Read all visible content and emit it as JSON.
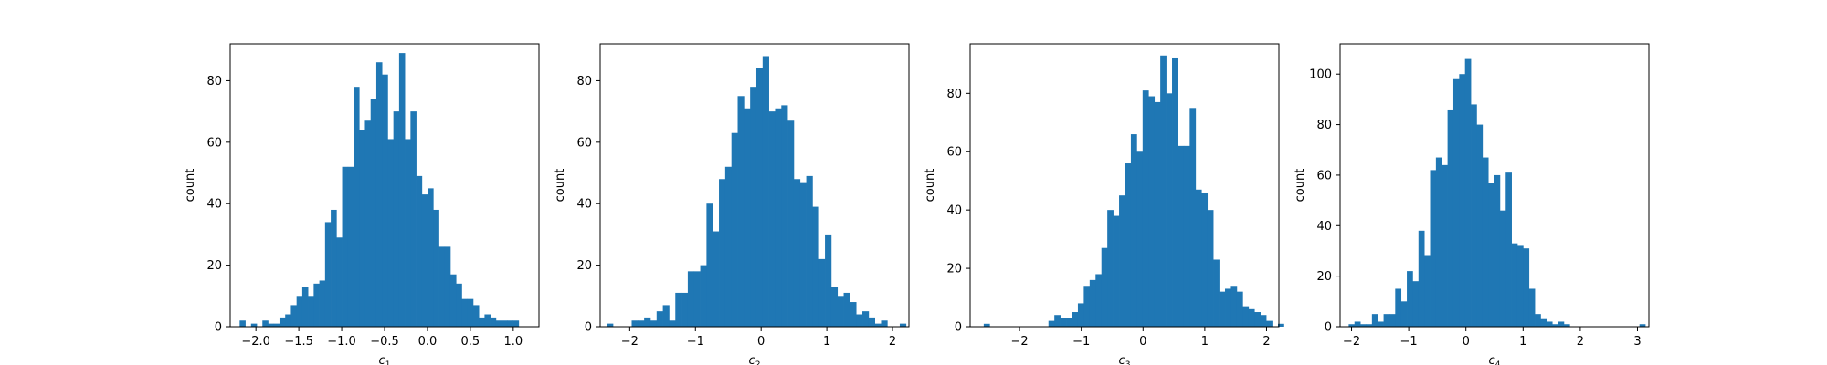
{
  "chart_data": [
    {
      "type": "bar",
      "subtype": "histogram",
      "xlabel": "c",
      "xlabel_sub": "1",
      "ylabel": "count",
      "xlim": [
        -2.3,
        1.3
      ],
      "ylim": [
        0,
        92
      ],
      "xticks": [
        -2.0,
        -1.5,
        -1.0,
        -0.5,
        0.0,
        0.5,
        1.0
      ],
      "xtick_labels": [
        "−2.0",
        "−1.5",
        "−1.0",
        "−0.5",
        "0.0",
        "0.5",
        "1.0"
      ],
      "yticks": [
        0,
        20,
        40,
        60,
        80
      ],
      "ytick_labels": [
        "0",
        "20",
        "40",
        "60",
        "80"
      ],
      "bin_start": -2.19,
      "bin_width": 0.0664,
      "values": [
        2,
        0,
        1,
        0,
        2,
        1,
        1,
        3,
        4,
        7,
        10,
        13,
        10,
        14,
        15,
        34,
        38,
        29,
        52,
        52,
        78,
        64,
        67,
        74,
        86,
        82,
        61,
        70,
        89,
        61,
        70,
        49,
        43,
        45,
        38,
        26,
        26,
        17,
        14,
        9,
        9,
        7,
        3,
        4,
        3,
        2,
        2,
        2,
        2
      ]
    },
    {
      "type": "bar",
      "subtype": "histogram",
      "xlabel": "c",
      "xlabel_sub": "2",
      "ylabel": "count",
      "xlim": [
        -2.45,
        2.25
      ],
      "ylim": [
        0,
        92
      ],
      "xticks": [
        -2,
        -1,
        0,
        1,
        2
      ],
      "xtick_labels": [
        "−2",
        "−1",
        "0",
        "1",
        "2"
      ],
      "yticks": [
        0,
        20,
        40,
        60,
        80
      ],
      "ytick_labels": [
        "0",
        "20",
        "40",
        "60",
        "80"
      ],
      "bin_start": -2.35,
      "bin_width": 0.0949,
      "values": [
        1,
        0,
        0,
        0,
        2,
        2,
        3,
        2,
        5,
        7,
        2,
        11,
        11,
        18,
        18,
        20,
        40,
        31,
        48,
        52,
        63,
        75,
        71,
        78,
        84,
        88,
        70,
        71,
        72,
        67,
        48,
        47,
        49,
        39,
        22,
        30,
        13,
        10,
        11,
        8,
        4,
        5,
        3,
        1,
        2,
        0,
        0,
        1
      ]
    },
    {
      "type": "bar",
      "subtype": "histogram",
      "xlabel": "c",
      "xlabel_sub": "3",
      "ylabel": "count",
      "xlim": [
        -2.8,
        2.2
      ],
      "ylim": [
        0,
        97
      ],
      "xticks": [
        -2,
        -1,
        0,
        1,
        2
      ],
      "xtick_labels": [
        "−2",
        "−1",
        "0",
        "1",
        "2"
      ],
      "yticks": [
        0,
        20,
        40,
        60,
        80
      ],
      "ytick_labels": [
        "0",
        "20",
        "40",
        "60",
        "80"
      ],
      "bin_start": -2.58,
      "bin_width": 0.0953,
      "values": [
        1,
        0,
        0,
        0,
        0,
        0,
        0,
        0,
        0,
        0,
        0,
        2,
        4,
        3,
        3,
        5,
        8,
        14,
        16,
        18,
        27,
        40,
        38,
        45,
        56,
        66,
        60,
        81,
        79,
        77,
        93,
        80,
        92,
        62,
        62,
        75,
        47,
        46,
        40,
        23,
        12,
        13,
        14,
        12,
        7,
        6,
        5,
        4,
        2,
        0,
        1
      ]
    },
    {
      "type": "bar",
      "subtype": "histogram",
      "xlabel": "c",
      "xlabel_sub": "4",
      "ylabel": "count",
      "xlim": [
        -2.2,
        3.2
      ],
      "ylim": [
        0,
        112
      ],
      "xticks": [
        -2,
        -1,
        0,
        1,
        2,
        3
      ],
      "xtick_labels": [
        "−2",
        "−1",
        "0",
        "1",
        "2",
        "3"
      ],
      "yticks": [
        0,
        20,
        40,
        60,
        80,
        100
      ],
      "ytick_labels": [
        "0",
        "20",
        "40",
        "60",
        "80",
        "100"
      ],
      "bin_start": -2.05,
      "bin_width": 0.1017,
      "values": [
        1,
        2,
        1,
        1,
        5,
        2,
        5,
        5,
        15,
        10,
        22,
        18,
        38,
        28,
        62,
        67,
        64,
        86,
        98,
        100,
        106,
        88,
        80,
        67,
        57,
        60,
        46,
        61,
        33,
        32,
        31,
        15,
        5,
        3,
        2,
        1,
        2,
        1,
        0,
        0,
        0,
        0,
        0,
        0,
        0,
        0,
        0,
        0,
        0,
        0,
        1
      ]
    }
  ]
}
